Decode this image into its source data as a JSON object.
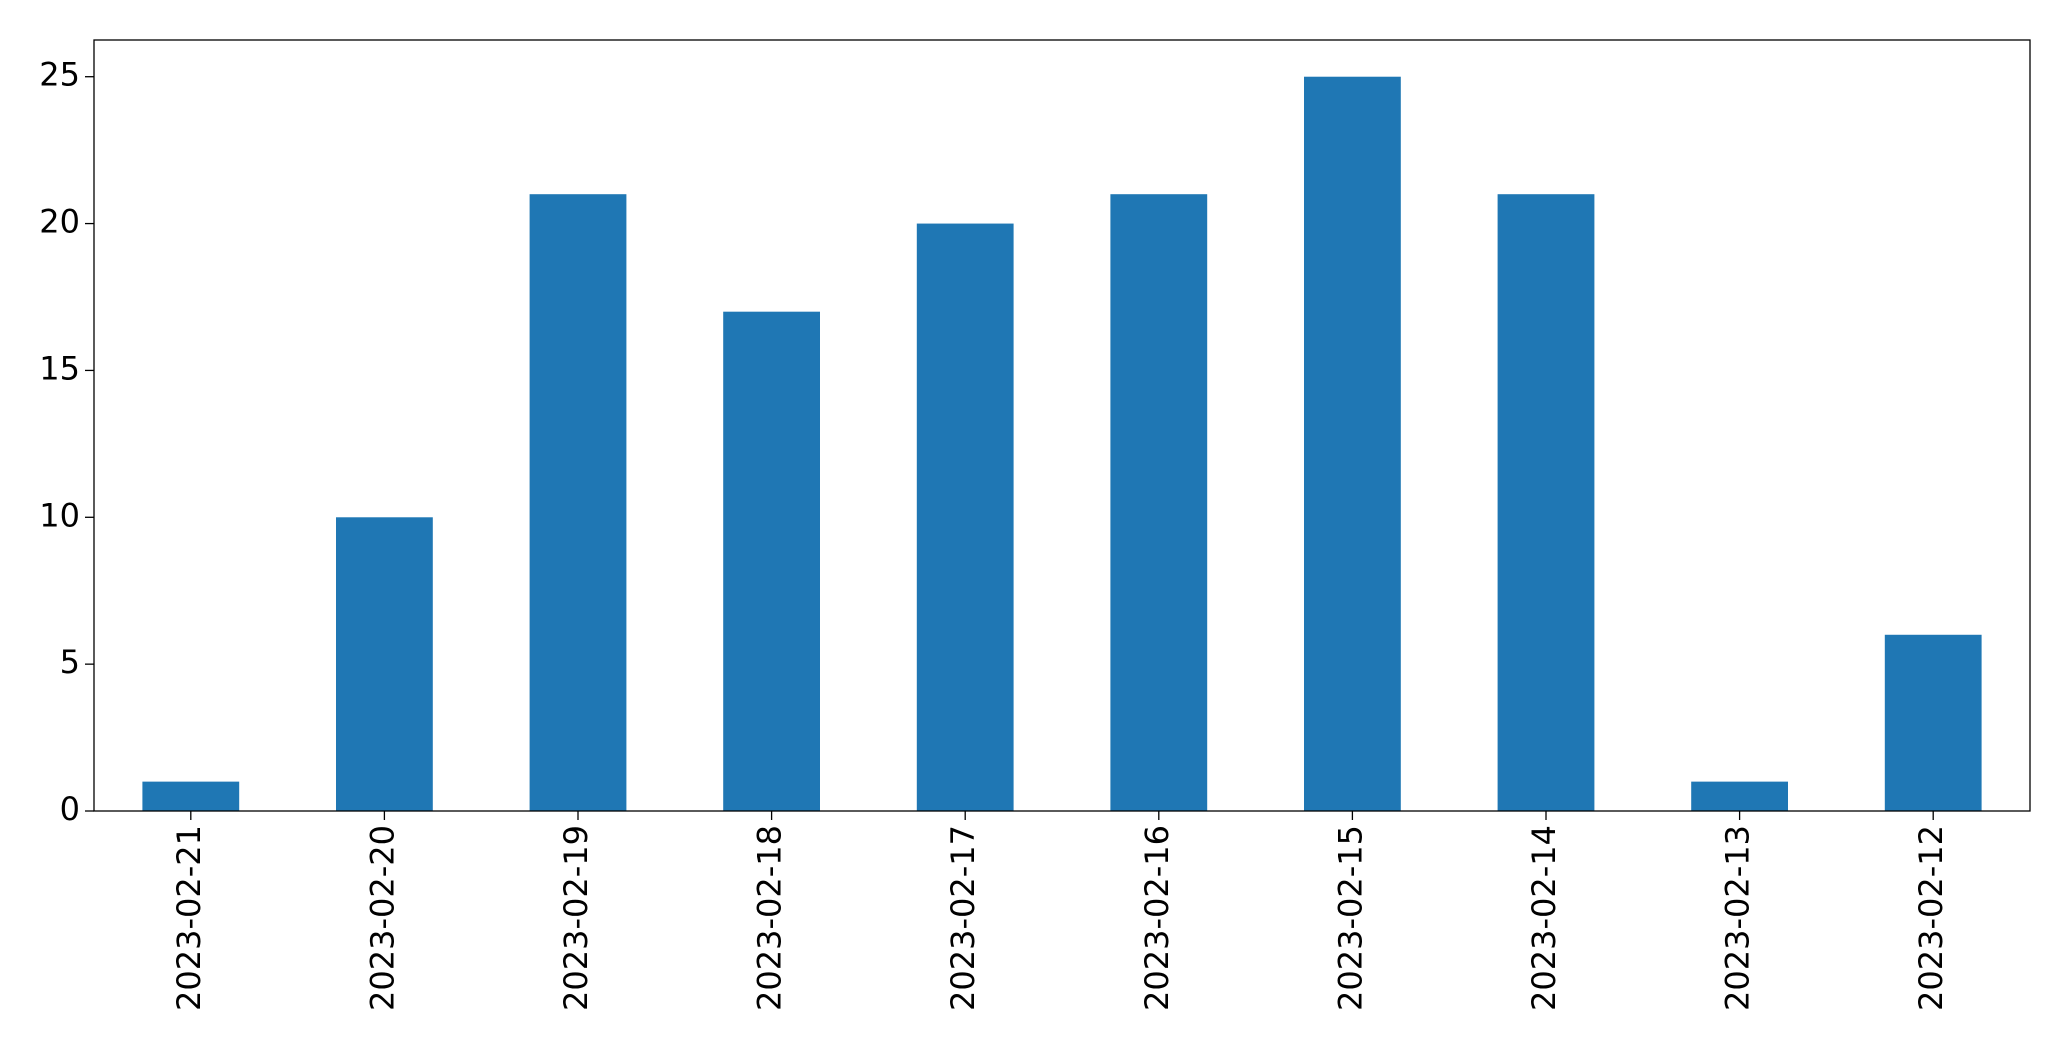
{
  "chart_data": {
    "type": "bar",
    "categories": [
      "2023-02-21",
      "2023-02-20",
      "2023-02-19",
      "2023-02-18",
      "2023-02-17",
      "2023-02-16",
      "2023-02-15",
      "2023-02-14",
      "2023-02-13",
      "2023-02-12"
    ],
    "values": [
      1,
      10,
      21,
      17,
      20,
      21,
      25,
      21,
      1,
      6
    ],
    "color": "#1f77b4",
    "ylim": [
      0,
      26.25
    ],
    "yticks": [
      0,
      5,
      10,
      15,
      20,
      25
    ],
    "grid": false
  }
}
